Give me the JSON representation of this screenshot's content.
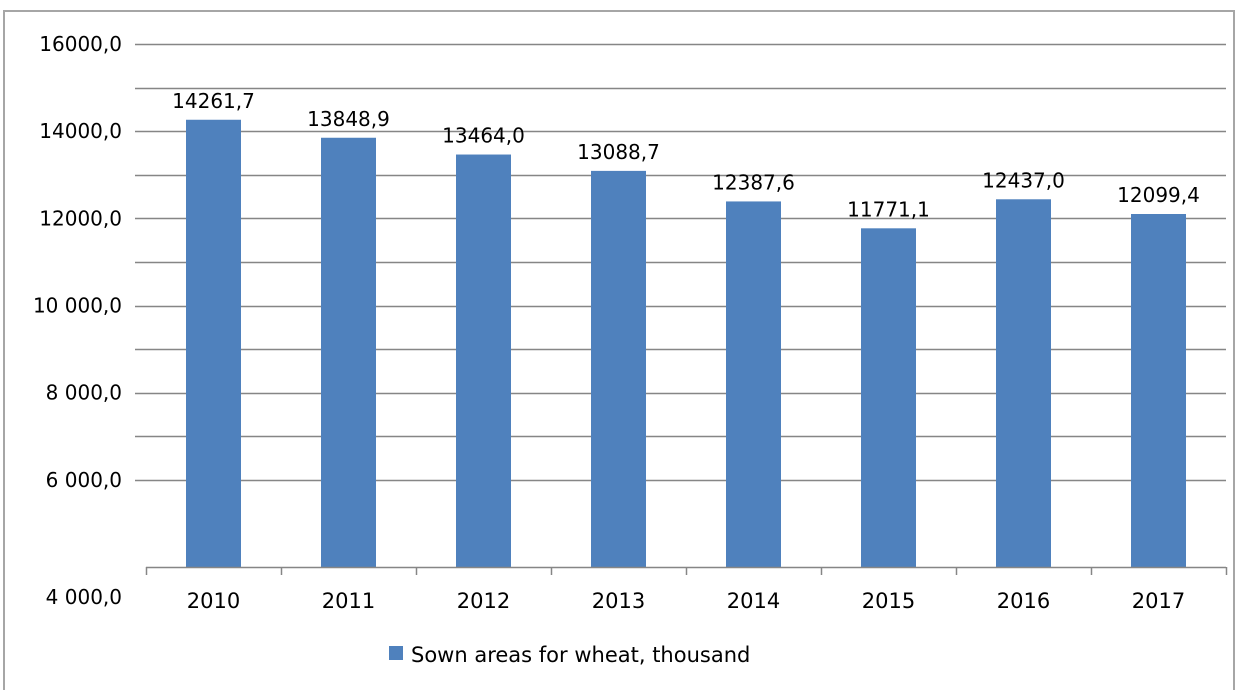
{
  "chart_data": {
    "type": "bar",
    "title": "",
    "xlabel": "",
    "ylabel": "",
    "categories": [
      "2010",
      "2011",
      "2012",
      "2013",
      "2014",
      "2015",
      "2016",
      "2017"
    ],
    "series": [
      {
        "name": "Sown areas for wheat, thousand",
        "values": [
          14261.7,
          13848.9,
          13464.0,
          13088.7,
          12387.6,
          11771.1,
          12437.0,
          12099.4
        ],
        "data_labels": [
          "14261,7",
          "13848,9",
          "13464,0",
          "13088,7",
          "12387,6",
          "11771,1",
          "12437,0",
          "12099,4"
        ],
        "color": "#4f81bd"
      }
    ],
    "ylim": [
      4000,
      16000
    ],
    "yticks": [
      {
        "value": 16000,
        "label": "16000,0"
      },
      {
        "value": 14000,
        "label": "14000,0"
      },
      {
        "value": 12000,
        "label": "12000,0"
      },
      {
        "value": 10000,
        "label": "10 000,0"
      },
      {
        "value": 8000,
        "label": "8 000,0"
      },
      {
        "value": 6000,
        "label": "6 000,0"
      },
      {
        "value": 4000,
        "label": "4 000,0"
      }
    ],
    "gridlines": [
      4000,
      6000,
      7000,
      8000,
      9000,
      10000,
      11000,
      12000,
      13000,
      14000,
      15000,
      16000
    ],
    "grid": true,
    "legend_position": "bottom-center",
    "gridline_color": "#868686"
  }
}
